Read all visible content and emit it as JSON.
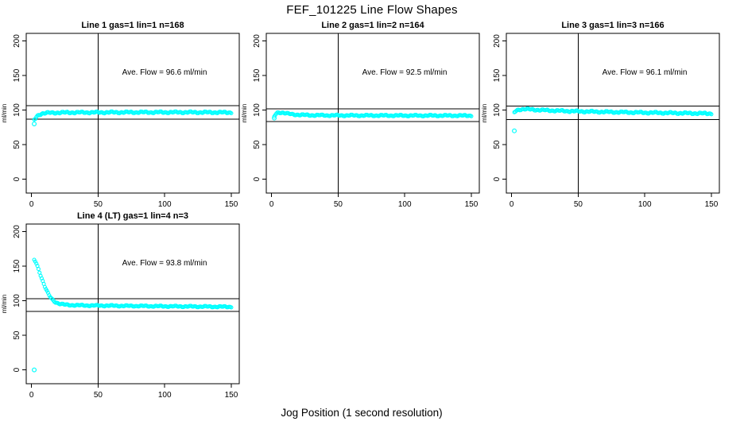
{
  "page": {
    "title": "FEF_101225  Line Flow Shapes",
    "xlabel": "Jog Position (1 second resolution)"
  },
  "chart_data": {
    "type": "scatter",
    "title": "FEF_101225  Line Flow Shapes",
    "xlabel": "Jog Position (1 second resolution)",
    "ylabel": "ml/min",
    "point_color": "#00FFFF",
    "axis_color": "#000000",
    "background": "#ffffff",
    "x_ticks": [
      0,
      50,
      100,
      150
    ],
    "y_ticks": [
      0,
      50,
      100,
      150,
      200
    ],
    "xlim": [
      -4,
      156
    ],
    "ylim": [
      -20,
      211
    ],
    "vline_x": 50,
    "grid": false,
    "legend": "none",
    "panels": [
      {
        "title": "Line 1 gas=1 lin=1 n=168",
        "annotation": "Ave. Flow =  96.6  ml/min",
        "ave_flow": 96.6,
        "n": 168,
        "ref_lines": [
          106.3,
          86.9
        ],
        "outliers": [
          [
            2,
            80
          ]
        ],
        "band": [
          [
            2.5,
            86
          ],
          [
            3,
            88.5
          ],
          [
            4,
            91
          ],
          [
            5,
            92.5
          ],
          [
            6,
            93.8
          ],
          [
            8,
            95
          ],
          [
            10,
            95.6
          ],
          [
            14,
            96
          ],
          [
            20,
            96.3
          ],
          [
            30,
            96.5
          ],
          [
            50,
            96.6
          ],
          [
            80,
            96.8
          ],
          [
            110,
            96.8
          ],
          [
            130,
            96.7
          ],
          [
            150,
            96.5
          ]
        ],
        "band_halfwidth": 1.3
      },
      {
        "title": "Line 2 gas=1 lin=2 n=164",
        "annotation": "Ave. Flow =  92.5  ml/min",
        "ave_flow": 92.5,
        "n": 164,
        "ref_lines": [
          101.8,
          83.3
        ],
        "outliers": [
          [
            2,
            88.5
          ]
        ],
        "band": [
          [
            2,
            90.5
          ],
          [
            3,
            94
          ],
          [
            4,
            95.8
          ],
          [
            5,
            96.5
          ],
          [
            7,
            96.6
          ],
          [
            9,
            96
          ],
          [
            12,
            94.8
          ],
          [
            16,
            93.8
          ],
          [
            22,
            93
          ],
          [
            30,
            92.6
          ],
          [
            45,
            92.3
          ],
          [
            70,
            92.2
          ],
          [
            100,
            92.1
          ],
          [
            150,
            92
          ]
        ],
        "band_halfwidth": 1.1
      },
      {
        "title": "Line 3 gas=1 lin=3 n=166",
        "annotation": "Ave. Flow =  96.1  ml/min",
        "ave_flow": 96.1,
        "n": 166,
        "ref_lines": [
          105.7,
          86.5
        ],
        "outliers": [
          [
            2,
            70
          ]
        ],
        "band": [
          [
            2,
            96.5
          ],
          [
            3,
            98.5
          ],
          [
            5,
            100.5
          ],
          [
            7,
            101.3
          ],
          [
            10,
            101.4
          ],
          [
            15,
            100.8
          ],
          [
            22,
            100
          ],
          [
            32,
            99.2
          ],
          [
            45,
            98.4
          ],
          [
            60,
            97.7
          ],
          [
            80,
            97
          ],
          [
            100,
            96.3
          ],
          [
            120,
            95.8
          ],
          [
            135,
            95.4
          ],
          [
            150,
            95
          ]
        ],
        "band_halfwidth": 1.3
      },
      {
        "title": "Line 4 (LT) gas=1 lin=4 n=3",
        "annotation": "Ave. Flow =  93.8  ml/min",
        "ave_flow": 93.8,
        "n": 3,
        "ref_lines": [
          103.2,
          84.4
        ],
        "outliers": [
          [
            2,
            0
          ]
        ],
        "band": [
          [
            2,
            159
          ],
          [
            3,
            156.5
          ],
          [
            4,
            152
          ],
          [
            5,
            147
          ],
          [
            6,
            141.5
          ],
          [
            7,
            136
          ],
          [
            8,
            130.5
          ],
          [
            9,
            125.5
          ],
          [
            10,
            120.5
          ],
          [
            11,
            116
          ],
          [
            12,
            112
          ],
          [
            13,
            108.5
          ],
          [
            14,
            105.5
          ],
          [
            15,
            103
          ],
          [
            16,
            101
          ],
          [
            17,
            99.3
          ],
          [
            18,
            98
          ],
          [
            20,
            96.3
          ],
          [
            22,
            95.2
          ],
          [
            25,
            94.3
          ],
          [
            30,
            93.7
          ],
          [
            40,
            93.2
          ],
          [
            60,
            92.8
          ],
          [
            80,
            92.4
          ],
          [
            100,
            92
          ],
          [
            125,
            91.6
          ],
          [
            150,
            91.2
          ]
        ],
        "band_halfwidth": 1.0
      }
    ]
  }
}
